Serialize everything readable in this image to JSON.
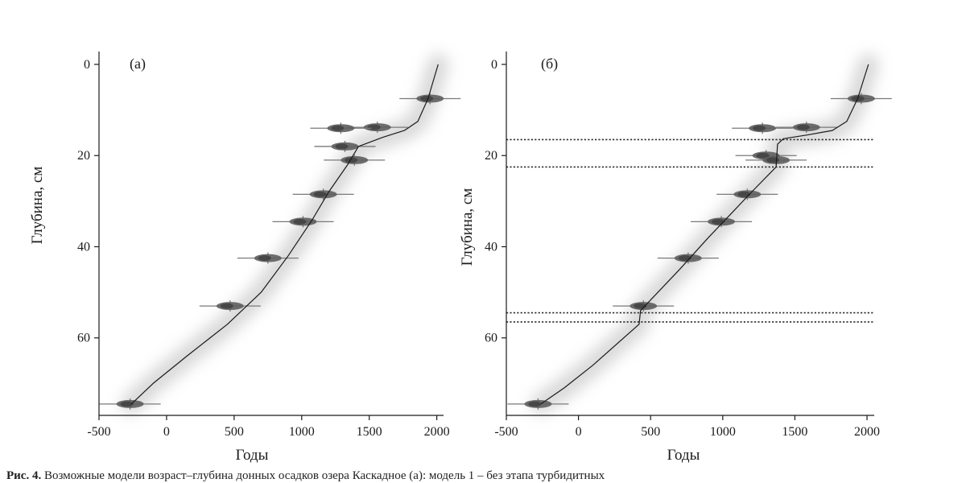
{
  "figure": {
    "caption_label": "Рис. 4.",
    "caption_text": "Возможные модели возраст–глубина донных осадков озера Каскадное (а): модель 1 – без этапа турбидитных"
  },
  "chart_data": [
    {
      "type": "line",
      "panel_label": "(а)",
      "xlabel": "Годы",
      "ylabel": "Глубина, см",
      "xlim": [
        -500,
        2050
      ],
      "ylim": [
        0,
        77
      ],
      "y_inverted": true,
      "x_ticks": [
        -500,
        0,
        500,
        1000,
        1500,
        2000
      ],
      "y_ticks": [
        0,
        20,
        40,
        60
      ],
      "grid": false,
      "series": [
        {
          "role": "age-depth model",
          "x": [
            2010,
            1935,
            1860,
            1760,
            1600,
            1420,
            1340,
            1200,
            1080,
            900,
            700,
            450,
            150,
            -100,
            -260
          ],
          "y": [
            0,
            7.5,
            12.5,
            14.5,
            16,
            18,
            22,
            28,
            34,
            42,
            50,
            57,
            64,
            70,
            74.5
          ]
        }
      ],
      "dates": [
        {
          "x": 1950,
          "y": 7.5
        },
        {
          "x": 1560,
          "y": 13.8
        },
        {
          "x": 1290,
          "y": 14
        },
        {
          "x": 1320,
          "y": 18
        },
        {
          "x": 1390,
          "y": 21
        },
        {
          "x": 1160,
          "y": 28.5
        },
        {
          "x": 1010,
          "y": 34.5
        },
        {
          "x": 750,
          "y": 42.5
        },
        {
          "x": 470,
          "y": 53
        },
        {
          "x": -270,
          "y": 74.5
        }
      ],
      "dotted_lines": []
    },
    {
      "type": "line",
      "panel_label": "(б)",
      "xlabel": "Годы",
      "ylabel": "Глубина, см",
      "xlim": [
        -500,
        2050
      ],
      "ylim": [
        0,
        77
      ],
      "y_inverted": true,
      "x_ticks": [
        -500,
        0,
        500,
        1000,
        1500,
        2000
      ],
      "y_ticks": [
        0,
        20,
        40,
        60
      ],
      "grid": false,
      "series": [
        {
          "role": "age-depth model",
          "x": [
            2010,
            1935,
            1860,
            1760,
            1580,
            1420,
            1380,
            1370,
            1200,
            1050,
            900,
            700,
            430,
            420,
            100,
            -100,
            -260
          ],
          "y": [
            0,
            7.5,
            12.5,
            14.5,
            15.5,
            16.3,
            17.5,
            22.5,
            28,
            33,
            38,
            45,
            54,
            57,
            66,
            71,
            74.5
          ]
        }
      ],
      "dates": [
        {
          "x": 1960,
          "y": 7.5
        },
        {
          "x": 1580,
          "y": 13.8
        },
        {
          "x": 1275,
          "y": 14
        },
        {
          "x": 1300,
          "y": 20
        },
        {
          "x": 1370,
          "y": 21
        },
        {
          "x": 1170,
          "y": 28.5
        },
        {
          "x": 990,
          "y": 34.5
        },
        {
          "x": 760,
          "y": 42.5
        },
        {
          "x": 450,
          "y": 53
        },
        {
          "x": -280,
          "y": 74.5
        }
      ],
      "dotted_lines": [
        16.5,
        22.5,
        54.5,
        56.5
      ]
    }
  ]
}
